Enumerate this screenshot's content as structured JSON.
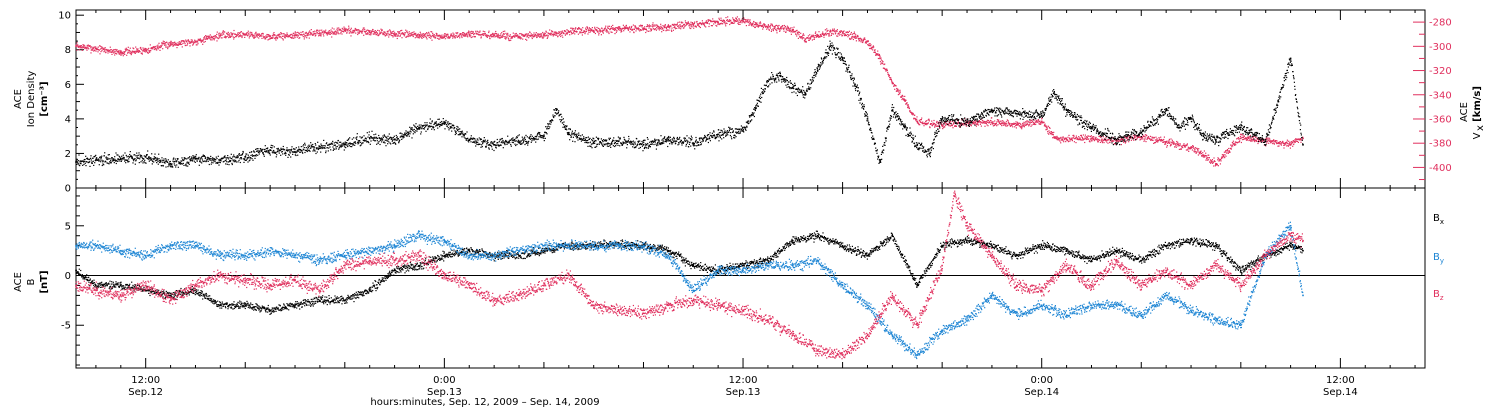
{
  "colors": {
    "black": "#000000",
    "red": "#e0305e",
    "blue": "#1f86d4"
  },
  "xlabel": "hours:minutes, Sep. 12, 2009 – Sep. 14, 2009",
  "x_ticks": [
    {
      "hours": 12,
      "time": "12:00",
      "date": "Sep.12"
    },
    {
      "hours": 24,
      "time": "0:00",
      "date": "Sep.13"
    },
    {
      "hours": 36,
      "time": "12:00",
      "date": "Sep.13"
    },
    {
      "hours": 48,
      "time": "0:00",
      "date": "Sep.14"
    },
    {
      "hours": 60,
      "time": "12:00",
      "date": "Sep.14"
    }
  ],
  "chart_data": [
    {
      "type": "scatter",
      "panel": "top",
      "xlim_hours_since_Sep12_0000": [
        9.2,
        63.4
      ],
      "ylabel_left": [
        "ACE",
        "Ion Density",
        "[cm⁻³]"
      ],
      "ylabel_right": [
        "ACE",
        "V",
        "x",
        "[km/s]"
      ],
      "ylim_left": [
        0,
        10.3
      ],
      "ylim_right": [
        -417,
        -270
      ],
      "left_ticks": [
        "0",
        "2",
        "4",
        "6",
        "8",
        "10"
      ],
      "right_ticks": [
        "-280",
        "-300",
        "-320",
        "-340",
        "-360",
        "-380",
        "-400"
      ],
      "series": [
        {
          "name": "Ion Density",
          "axis": "left",
          "color": "#000000",
          "x": [
            9.2,
            10,
            11,
            12,
            13,
            14,
            15,
            16,
            17,
            18,
            19,
            20,
            21,
            22,
            23,
            24,
            25,
            26,
            27,
            28,
            28.5,
            29,
            30,
            31,
            32,
            33,
            34,
            35,
            36,
            36.5,
            37,
            37.5,
            38,
            38.5,
            39,
            39.5,
            40,
            40.5,
            41,
            41.5,
            42,
            42.5,
            43,
            43.5,
            44,
            45,
            46,
            47,
            48,
            48.5,
            49,
            50,
            51,
            52,
            53,
            53.5,
            54,
            54.5,
            55,
            56,
            57,
            57.5,
            58,
            58.5
          ],
          "y": [
            1.5,
            1.6,
            1.7,
            1.8,
            1.4,
            1.7,
            1.6,
            1.8,
            2.2,
            2.1,
            2.4,
            2.5,
            2.9,
            2.8,
            3.5,
            3.8,
            2.8,
            2.5,
            2.7,
            3.0,
            4.5,
            3.2,
            2.6,
            2.7,
            2.5,
            2.8,
            2.6,
            3.1,
            3.3,
            4.6,
            6.2,
            6.5,
            5.8,
            5.5,
            6.8,
            8.2,
            7.5,
            6.0,
            4.0,
            1.5,
            4.5,
            3.5,
            2.5,
            2.0,
            4.0,
            3.8,
            4.5,
            4.3,
            4.2,
            5.5,
            4.5,
            3.5,
            2.8,
            3.2,
            4.5,
            3.5,
            4.0,
            3.0,
            2.8,
            3.5,
            2.7,
            5.0,
            7.5,
            2.5
          ]
        },
        {
          "name": "Vx",
          "axis": "right",
          "color": "#e0305e",
          "x": [
            9.2,
            10,
            11,
            12,
            13,
            14,
            15,
            16,
            17,
            18,
            19,
            20,
            21,
            22,
            23,
            24,
            25,
            26,
            27,
            28,
            29,
            30,
            31,
            32,
            33,
            34,
            35,
            36,
            36.5,
            37,
            38,
            38.5,
            39,
            39.5,
            40,
            40.5,
            41,
            41.5,
            42,
            42.5,
            43,
            44,
            45,
            46,
            47,
            48,
            48.5,
            49,
            50,
            51,
            52,
            53,
            54,
            54.5,
            55,
            56,
            57,
            58,
            58.5
          ],
          "y": [
            -300,
            -302,
            -305,
            -303,
            -298,
            -296,
            -291,
            -290,
            -292,
            -291,
            -289,
            -287,
            -288,
            -290,
            -291,
            -292,
            -290,
            -291,
            -292,
            -291,
            -288,
            -287,
            -286,
            -285,
            -284,
            -282,
            -280,
            -279,
            -282,
            -284,
            -287,
            -294,
            -291,
            -288,
            -289,
            -292,
            -296,
            -310,
            -330,
            -345,
            -362,
            -365,
            -363,
            -363,
            -365,
            -362,
            -375,
            -377,
            -376,
            -378,
            -375,
            -379,
            -384,
            -390,
            -397,
            -376,
            -378,
            -381,
            -376
          ]
        }
      ]
    },
    {
      "type": "scatter",
      "panel": "bottom",
      "xlim_hours_since_Sep12_0000": [
        9.2,
        63.4
      ],
      "ylabel_left": [
        "ACE",
        "B",
        "[nT]"
      ],
      "ylim": [
        -9.3,
        8.8
      ],
      "left_ticks": [
        "5",
        "0",
        "-5"
      ],
      "series": [
        {
          "name": "Bx",
          "legend_label": "B",
          "legend_sub": "x",
          "color": "#000000",
          "x": [
            9.2,
            10,
            11,
            12,
            13,
            14,
            15,
            16,
            17,
            18,
            19,
            20,
            21,
            22,
            23,
            24,
            25,
            26,
            27,
            28,
            29,
            30,
            31,
            32,
            33,
            34,
            35,
            36,
            37,
            38,
            39,
            40,
            41,
            42,
            43,
            44,
            45,
            46,
            47,
            48,
            49,
            50,
            51,
            52,
            53,
            54,
            55,
            56,
            57,
            58,
            58.5
          ],
          "y": [
            0.5,
            -1.0,
            -1.0,
            -1.5,
            -2.0,
            -1.5,
            -3.0,
            -3.0,
            -3.5,
            -3.0,
            -2.5,
            -2.5,
            -1.5,
            0.5,
            1.0,
            2.0,
            2.5,
            2.0,
            2.0,
            2.5,
            3.0,
            3.0,
            3.2,
            3.0,
            2.5,
            1.0,
            0.5,
            1.0,
            1.5,
            3.5,
            4.0,
            3.0,
            2.0,
            4.0,
            -1.0,
            3.0,
            3.5,
            3.0,
            2.0,
            3.0,
            2.5,
            1.5,
            2.5,
            1.5,
            3.0,
            3.5,
            3.0,
            0.5,
            2.0,
            3.0,
            2.5
          ]
        },
        {
          "name": "By",
          "legend_label": "B",
          "legend_sub": "y",
          "color": "#1f86d4",
          "x": [
            9.2,
            10,
            11,
            12,
            13,
            14,
            15,
            16,
            17,
            18,
            19,
            20,
            21,
            22,
            23,
            24,
            25,
            26,
            27,
            28,
            29,
            30,
            31,
            32,
            33,
            34,
            35,
            36,
            37,
            38,
            39,
            40,
            41,
            42,
            43,
            44,
            45,
            46,
            47,
            48,
            49,
            50,
            51,
            52,
            53,
            54,
            55,
            56,
            57,
            58,
            58.5
          ],
          "y": [
            3.0,
            3.0,
            2.5,
            2.0,
            3.0,
            3.0,
            2.0,
            2.0,
            2.5,
            2.0,
            1.5,
            2.0,
            2.5,
            3.0,
            4.0,
            3.5,
            2.0,
            2.0,
            2.5,
            3.0,
            3.0,
            3.0,
            3.0,
            3.0,
            2.0,
            -1.5,
            0.5,
            0.5,
            1.0,
            1.0,
            1.5,
            -1.0,
            -3.0,
            -6.0,
            -8.0,
            -5.5,
            -4.5,
            -2.0,
            -4.0,
            -3.0,
            -4.0,
            -3.0,
            -3.0,
            -4.0,
            -2.0,
            -3.5,
            -4.5,
            -5.0,
            2.0,
            5.0,
            -2.0
          ]
        },
        {
          "name": "Bz",
          "legend_label": "B",
          "legend_sub": "z",
          "color": "#e0305e",
          "x": [
            9.2,
            10,
            11,
            12,
            13,
            14,
            15,
            16,
            17,
            18,
            19,
            20,
            21,
            22,
            23,
            24,
            25,
            26,
            27,
            28,
            29,
            30,
            31,
            32,
            33,
            34,
            35,
            36,
            37,
            38,
            39,
            40,
            41,
            42,
            43,
            44,
            44.5,
            45,
            46,
            47,
            48,
            49,
            50,
            51,
            52,
            53,
            54,
            55,
            56,
            57,
            58,
            58.5
          ],
          "y": [
            -1.0,
            -1.5,
            -2.0,
            -1.0,
            -2.5,
            -1.0,
            0.0,
            -0.5,
            -1.0,
            -0.5,
            -1.5,
            1.0,
            1.5,
            1.5,
            2.0,
            0.0,
            -1.0,
            -2.5,
            -2.0,
            -1.0,
            0.0,
            -3.0,
            -3.5,
            -3.8,
            -3.0,
            -2.5,
            -3.0,
            -3.5,
            -4.5,
            -6.0,
            -7.5,
            -8.0,
            -6.0,
            -2.0,
            -5.0,
            1.0,
            8.0,
            5.0,
            2.0,
            -1.0,
            -1.5,
            1.0,
            -1.0,
            1.5,
            -1.0,
            0.5,
            -1.0,
            1.0,
            -1.0,
            2.0,
            4.0,
            3.5
          ]
        }
      ]
    }
  ]
}
